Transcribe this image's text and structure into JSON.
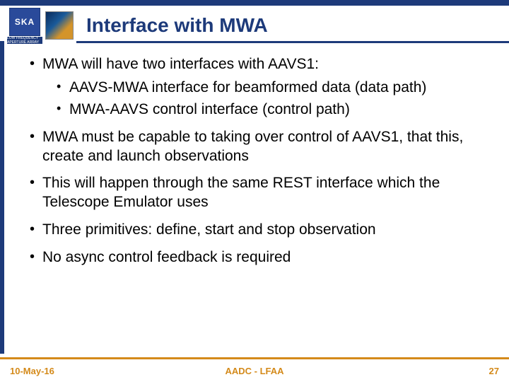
{
  "colors": {
    "primary": "#1d3a7a",
    "accent": "#d48a1a",
    "text": "#000000",
    "background": "#ffffff"
  },
  "typography": {
    "title_fontsize": 28,
    "body_fontsize": 21,
    "footer_fontsize": 13,
    "font_family": "Arial"
  },
  "logo": {
    "ska_text": "SKA",
    "ska_sub": "LOW FREQUENCY APERTURE ARRAY"
  },
  "title": "Interface with MWA",
  "bullets": [
    {
      "text": "MWA will have two interfaces with AAVS1:",
      "children": [
        {
          "text": "AAVS-MWA interface for beamformed data (data path)"
        },
        {
          "text": "MWA-AAVS control interface (control path)"
        }
      ]
    },
    {
      "text": "MWA must be capable to taking over control of AAVS1, that this, create and launch observations"
    },
    {
      "text": "This will happen through the same REST interface which the Telescope Emulator uses"
    },
    {
      "text": "Three primitives: define, start and stop observation"
    },
    {
      "text": "No async control feedback is required"
    }
  ],
  "footer": {
    "date": "10-May-16",
    "center": "AADC - LFAA",
    "page": "27"
  }
}
